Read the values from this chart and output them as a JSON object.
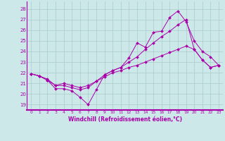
{
  "xlabel": "Windchill (Refroidissement éolien,°C)",
  "bg_color": "#cce8e8",
  "grid_color": "#aacccc",
  "line_color": "#aa00aa",
  "x_ticks": [
    0,
    1,
    2,
    3,
    4,
    5,
    6,
    7,
    8,
    9,
    10,
    11,
    12,
    13,
    14,
    15,
    16,
    17,
    18,
    19,
    20,
    21,
    22,
    23
  ],
  "y_ticks": [
    19,
    20,
    21,
    22,
    23,
    24,
    25,
    26,
    27,
    28
  ],
  "ylim": [
    18.5,
    28.7
  ],
  "xlim": [
    -0.5,
    23.5
  ],
  "line1_x": [
    0,
    1,
    2,
    3,
    4,
    5,
    6,
    7,
    8,
    9,
    10,
    11,
    12,
    13,
    14,
    15,
    16,
    17,
    18,
    19,
    20,
    21,
    22,
    23
  ],
  "line1_y": [
    21.9,
    21.7,
    21.3,
    20.5,
    20.5,
    20.3,
    19.7,
    19.0,
    20.4,
    21.8,
    22.2,
    22.5,
    23.4,
    24.8,
    24.4,
    25.8,
    25.9,
    27.2,
    27.8,
    26.8,
    25.0,
    24.0,
    23.5,
    22.7
  ],
  "line2_x": [
    0,
    1,
    2,
    3,
    4,
    5,
    6,
    7,
    8,
    9,
    10,
    11,
    12,
    13,
    14,
    15,
    16,
    17,
    18,
    19,
    20,
    21,
    22,
    23
  ],
  "line2_y": [
    21.9,
    21.7,
    21.3,
    20.8,
    20.8,
    20.6,
    20.4,
    20.6,
    21.2,
    21.8,
    22.2,
    22.5,
    23.0,
    23.5,
    24.2,
    24.8,
    25.4,
    25.9,
    26.5,
    27.0,
    24.2,
    23.2,
    22.5,
    22.7
  ],
  "line3_x": [
    0,
    1,
    2,
    3,
    4,
    5,
    6,
    7,
    8,
    9,
    10,
    11,
    12,
    13,
    14,
    15,
    16,
    17,
    18,
    19,
    20,
    21,
    22,
    23
  ],
  "line3_y": [
    21.9,
    21.7,
    21.4,
    20.8,
    21.0,
    20.8,
    20.6,
    20.8,
    21.2,
    21.6,
    22.0,
    22.2,
    22.5,
    22.7,
    23.0,
    23.3,
    23.6,
    23.9,
    24.2,
    24.5,
    24.2,
    23.2,
    22.5,
    22.7
  ]
}
